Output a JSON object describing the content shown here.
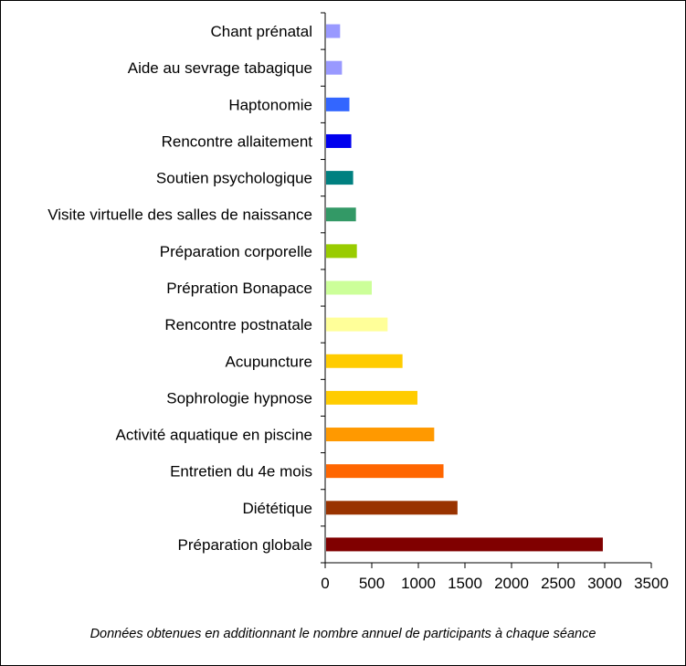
{
  "chart_data": {
    "type": "bar",
    "orientation": "horizontal",
    "categories": [
      "Chant prénatal",
      "Aide au sevrage tabagique",
      "Haptonomie",
      "Rencontre allaitement",
      "Soutien psychologique",
      "Visite virtuelle des salles de naissance",
      "Préparation corporelle",
      "Prépration Bonapace",
      "Rencontre postnatale",
      "Acupuncture",
      "Sophrologie hypnose",
      "Activité aquatique en piscine",
      "Entretien du 4e mois",
      "Diététique",
      "Préparation globale"
    ],
    "values": [
      160,
      180,
      260,
      280,
      300,
      330,
      340,
      500,
      670,
      830,
      990,
      1170,
      1270,
      1420,
      2980
    ],
    "colors": [
      "#9999ff",
      "#9999ff",
      "#3366ff",
      "#0000ee",
      "#008080",
      "#339966",
      "#99cc00",
      "#ccff99",
      "#ffff99",
      "#ffcc00",
      "#ffcc00",
      "#ff9900",
      "#ff6600",
      "#993300",
      "#800000"
    ],
    "xlim": [
      0,
      3500
    ],
    "xticks": [
      "0",
      "500",
      "1000",
      "1500",
      "2000",
      "2500",
      "3000",
      "3500"
    ],
    "xlabel": "",
    "ylabel": "",
    "title": "",
    "grid": false,
    "legend": "none"
  },
  "footnote": "Données obtenues en additionnant le nombre annuel de participants à chaque séance"
}
